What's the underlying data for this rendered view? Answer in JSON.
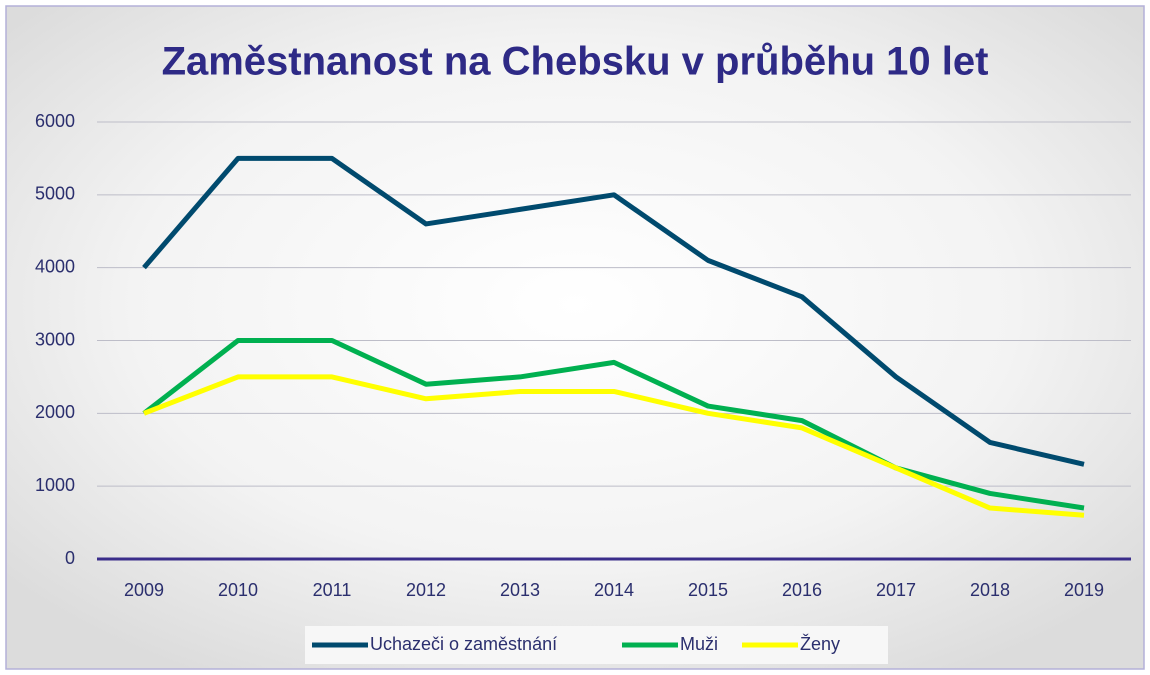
{
  "chart_data": {
    "type": "line",
    "title": "Zaměstnanost na Chebsku v průběhu 10 let",
    "categories": [
      "2009",
      "2010",
      "2011",
      "2012",
      "2013",
      "2014",
      "2015",
      "2016",
      "2017",
      "2018",
      "2019"
    ],
    "series": [
      {
        "name": "Uchazeči o zaměstnání",
        "color": "#004a6e",
        "values": [
          4000,
          5500,
          5500,
          4600,
          4800,
          5000,
          4100,
          3600,
          2500,
          1600,
          1300
        ]
      },
      {
        "name": "Muži",
        "color": "#00b050",
        "values": [
          2000,
          3000,
          3000,
          2400,
          2500,
          2700,
          2100,
          1900,
          1250,
          900,
          700
        ]
      },
      {
        "name": "Ženy",
        "color": "#ffff00",
        "values": [
          2000,
          2500,
          2500,
          2200,
          2300,
          2300,
          2000,
          1800,
          1250,
          700,
          600
        ]
      }
    ],
    "ylim": [
      0,
      6000
    ],
    "yticks": [
      0,
      1000,
      2000,
      3000,
      4000,
      5000,
      6000
    ],
    "grid": true,
    "legend": "bottom"
  }
}
